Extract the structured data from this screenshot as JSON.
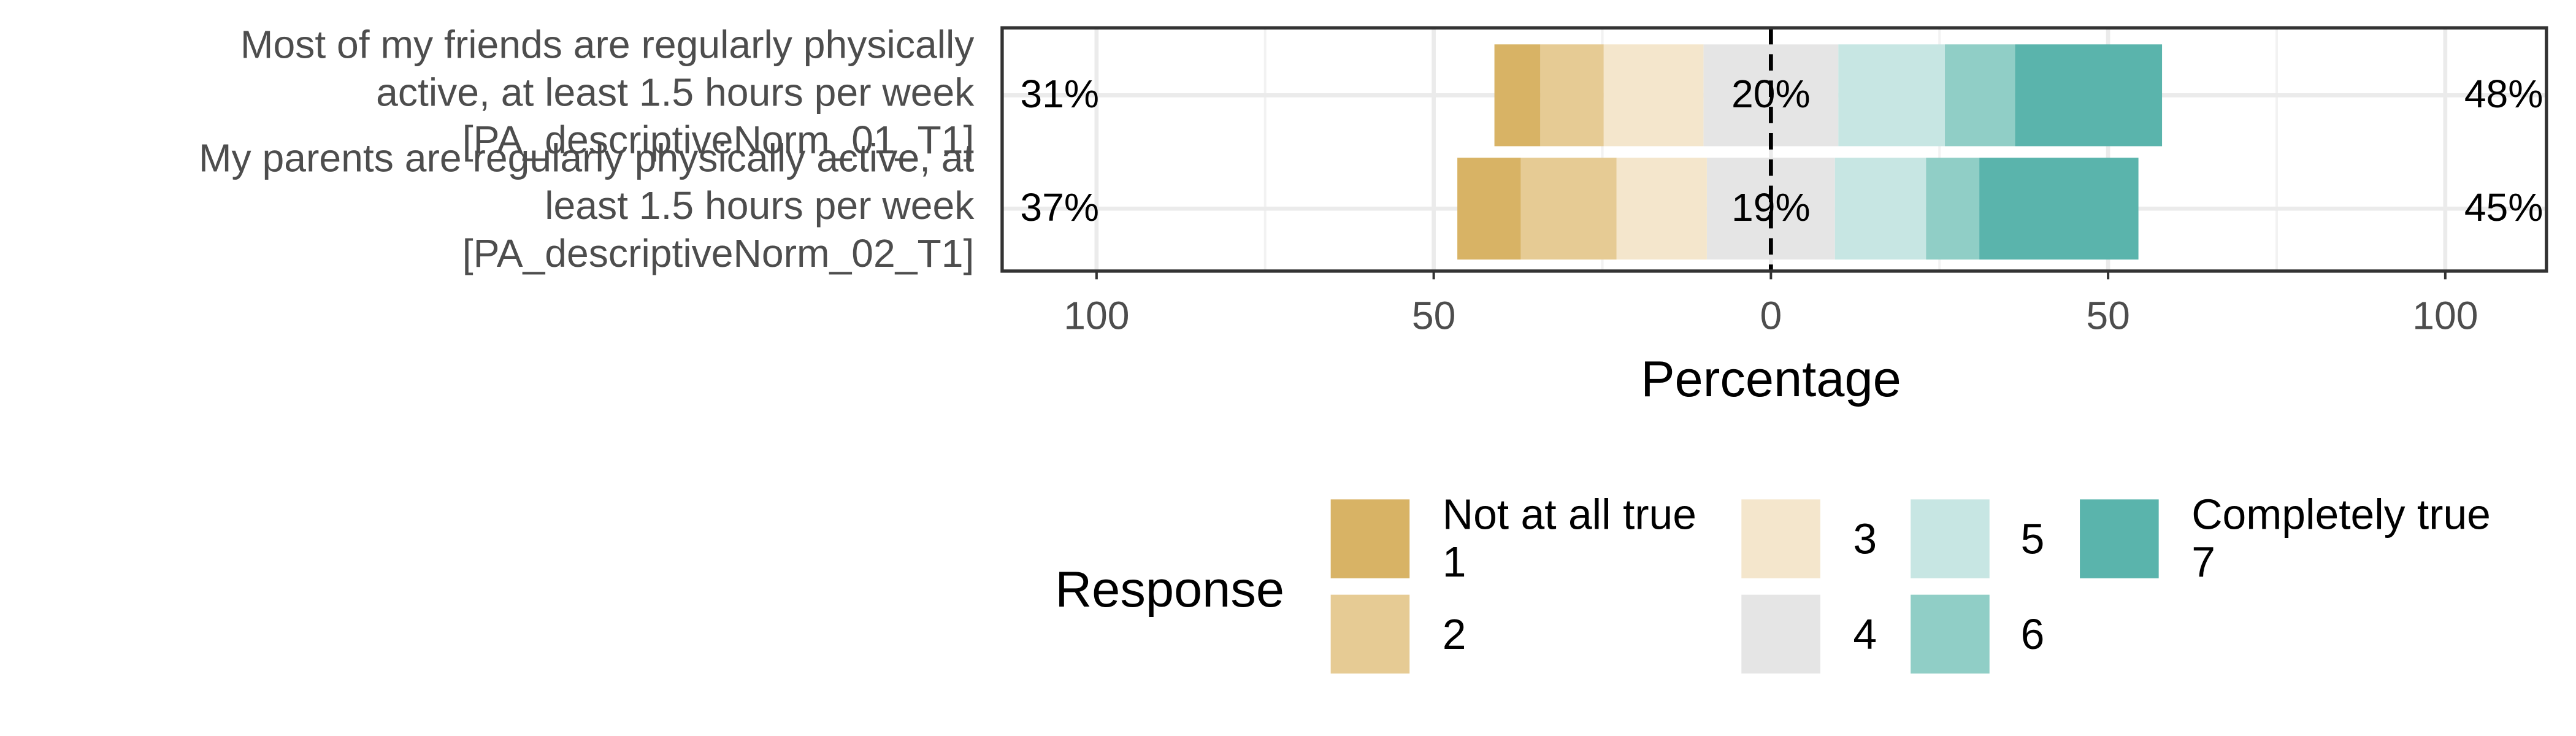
{
  "chart_data": {
    "type": "likert",
    "categories": [
      [
        "Most of my friends are regularly physically",
        "active, at least 1.5 hours per week",
        "[PA_descriptiveNorm_01_T1]"
      ],
      [
        "My parents are regularly physically active, at",
        "least 1.5 hours per week",
        "[PA_descriptiveNorm_02_T1]"
      ]
    ],
    "series": [
      {
        "name": "Not at all true\n1",
        "color": "#D8B365",
        "values": [
          6.8,
          9.4
        ]
      },
      {
        "name": "2",
        "color": "#E6CB94",
        "values": [
          9.4,
          14.2
        ]
      },
      {
        "name": "3",
        "color": "#F4E6CC",
        "values": [
          14.8,
          13.4
        ]
      },
      {
        "name": "4",
        "color": "#E5E5E5",
        "values": [
          20,
          19
        ]
      },
      {
        "name": "5",
        "color": "#C7E6E3",
        "values": [
          15.8,
          13.5
        ]
      },
      {
        "name": "6",
        "color": "#90CEC6",
        "values": [
          10.4,
          7.9
        ]
      },
      {
        "name": "Completely true\n7",
        "color": "#5AB4AC",
        "values": [
          21.8,
          23.6
        ]
      }
    ],
    "left_totals": [
      31,
      37
    ],
    "left_labels": [
      "31%",
      "37%"
    ],
    "neutral_labels": [
      "20%",
      "19%"
    ],
    "right_totals": [
      48,
      45
    ],
    "right_labels": [
      "48%",
      "45%"
    ],
    "xlabel": "Percentage",
    "legend_title": "Response",
    "xlim": [
      -114,
      115
    ],
    "xticks": [
      {
        "value": -100,
        "label": "100"
      },
      {
        "value": -50,
        "label": "50"
      },
      0,
      50,
      100
    ],
    "xminor": [
      -75,
      -25,
      25,
      75
    ],
    "grid": true
  }
}
